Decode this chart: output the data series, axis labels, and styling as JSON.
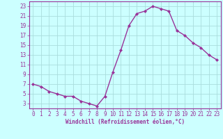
{
  "x": [
    0,
    1,
    2,
    3,
    4,
    5,
    6,
    7,
    8,
    9,
    10,
    11,
    12,
    13,
    14,
    15,
    16,
    17,
    18,
    19,
    20,
    21,
    22,
    23
  ],
  "y": [
    7,
    6.5,
    5.5,
    5,
    4.5,
    4.5,
    3.5,
    3,
    2.5,
    4.5,
    9.5,
    14,
    19,
    21.5,
    22,
    23,
    22.5,
    22,
    18,
    17,
    15.5,
    14.5,
    13,
    12
  ],
  "line_color": "#993399",
  "marker": "D",
  "markersize": 2,
  "linewidth": 1.0,
  "bg_color": "#ccffff",
  "grid_color": "#aadddd",
  "xlabel": "Windchill (Refroidissement éolien,°C)",
  "xlabel_color": "#993399",
  "tick_color": "#993399",
  "label_color": "#993399",
  "spine_color": "#993399",
  "ylim": [
    2,
    24
  ],
  "yticks": [
    3,
    5,
    7,
    9,
    11,
    13,
    15,
    17,
    19,
    21,
    23
  ],
  "xlim": [
    -0.5,
    23.5
  ],
  "xticks": [
    0,
    1,
    2,
    3,
    4,
    5,
    6,
    7,
    8,
    9,
    10,
    11,
    12,
    13,
    14,
    15,
    16,
    17,
    18,
    19,
    20,
    21,
    22,
    23
  ],
  "tick_fontsize": 5.5,
  "xlabel_fontsize": 5.5
}
